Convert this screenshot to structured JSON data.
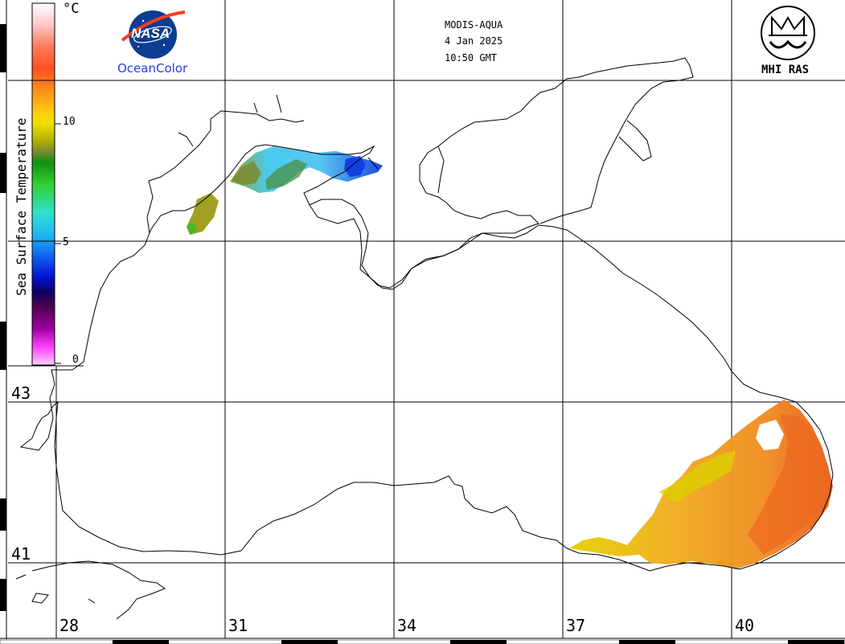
{
  "header": {
    "sensor": "MODIS-AQUA",
    "date": "4 Jan 2025",
    "time": "10:50 GMT"
  },
  "logos": {
    "nasa_wordmark": "NASA",
    "oceancolor": "OceanColor",
    "mhi": "MHI RAS"
  },
  "colorbar": {
    "title": "Sea Surface Temperature",
    "unit": "°C",
    "ticks": [
      "10",
      "5",
      "0"
    ],
    "stops": [
      "#ffffff",
      "#ffd0d8",
      "#ff7a5a",
      "#ff5020",
      "#ff8c1a",
      "#ffcc10",
      "#f0e000",
      "#b0b000",
      "#7a8a30",
      "#109010",
      "#30d030",
      "#30e0d0",
      "#20b8f0",
      "#1060f0",
      "#0010d0",
      "#100060",
      "#500050",
      "#a000a0",
      "#ff40ff",
      "#ffd0ff"
    ]
  },
  "axes": {
    "longitudes": [
      "28",
      "31",
      "34",
      "37",
      "40"
    ],
    "latitudes": [
      "43",
      "41"
    ]
  },
  "colors": {
    "coastline": "#000000",
    "sst_warm": "#f0a020",
    "sst_hot": "#ee6a20",
    "sst_cool": "#40c8f0"
  }
}
